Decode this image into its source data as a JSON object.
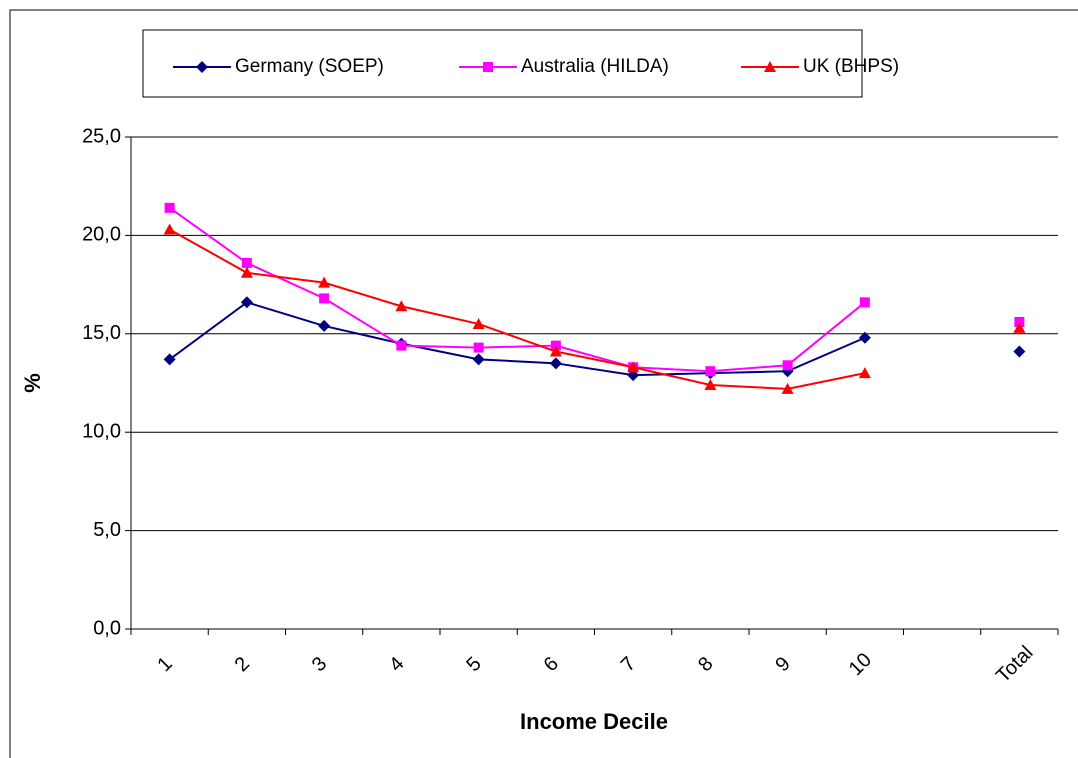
{
  "chart_data": {
    "type": "line",
    "x_label": "Income Decile",
    "y_label": "%",
    "categories": [
      "1",
      "2",
      "3",
      "4",
      "5",
      "6",
      "7",
      "8",
      "9",
      "10",
      null,
      "Total"
    ],
    "series": [
      {
        "name": "Germany (SOEP)",
        "color": "#000080",
        "marker": "diamond",
        "values": [
          13.7,
          16.6,
          15.4,
          14.5,
          13.7,
          13.5,
          12.9,
          13.0,
          13.1,
          14.8,
          null,
          14.1
        ]
      },
      {
        "name": "Australia (HILDA)",
        "color": "#ff00ff",
        "marker": "square",
        "values": [
          21.4,
          18.6,
          16.8,
          14.4,
          14.3,
          14.4,
          13.3,
          13.1,
          13.4,
          16.6,
          null,
          15.6
        ]
      },
      {
        "name": "UK (BHPS)",
        "color": "#ff0000",
        "marker": "triangle",
        "values": [
          20.3,
          18.1,
          17.6,
          16.4,
          15.5,
          14.1,
          13.3,
          12.4,
          12.2,
          13.0,
          null,
          15.3
        ]
      }
    ],
    "ylim": [
      0,
      25
    ],
    "yticks": [
      {
        "value": 0,
        "label": "0,0"
      },
      {
        "value": 5,
        "label": "5,0"
      },
      {
        "value": 10,
        "label": "10,0"
      },
      {
        "value": 15,
        "label": "15,0"
      },
      {
        "value": 20,
        "label": "20,0"
      },
      {
        "value": 25,
        "label": "25,0"
      }
    ],
    "grid": true
  }
}
